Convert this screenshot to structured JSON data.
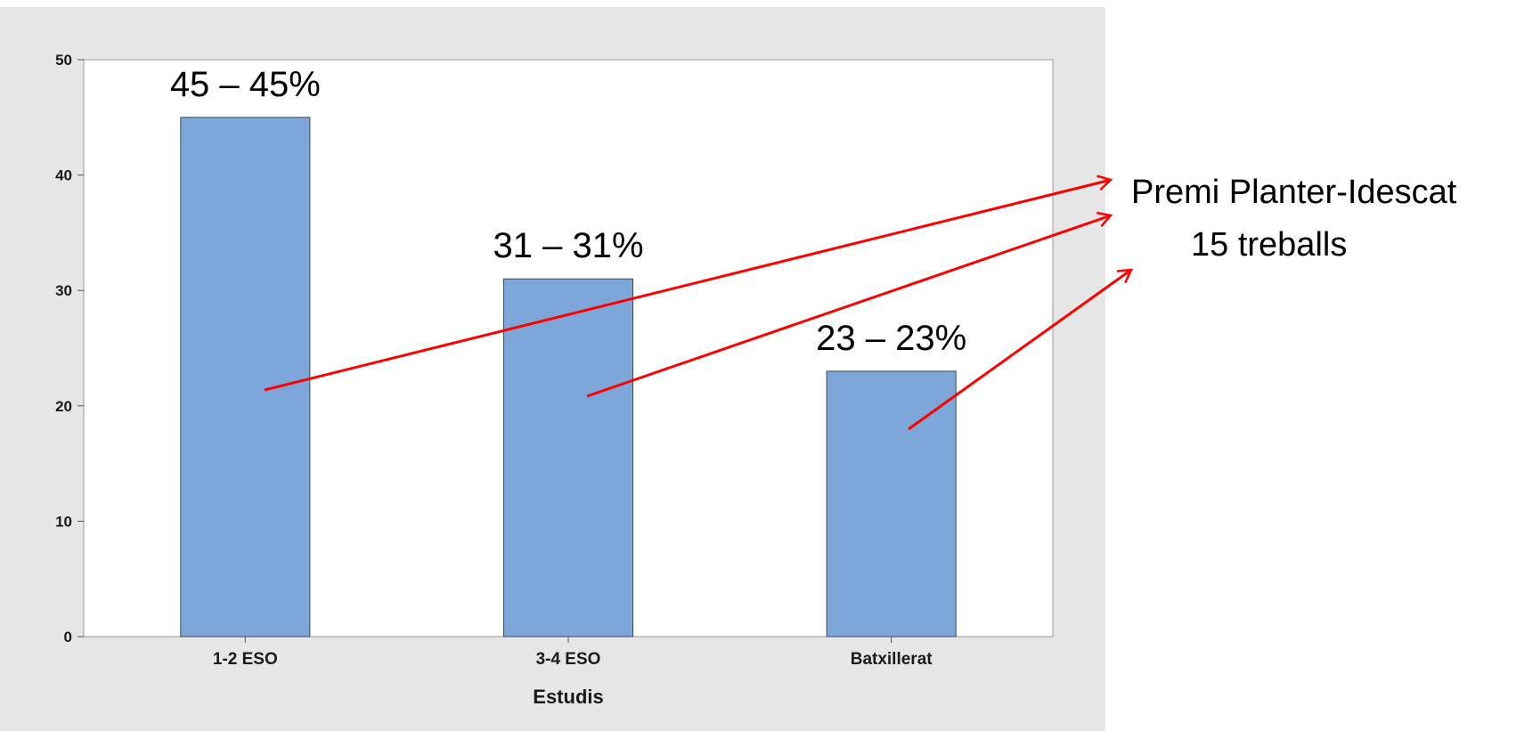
{
  "chart_data": {
    "type": "bar",
    "categories": [
      "1-2 ESO",
      "3-4 ESO",
      "Batxillerat"
    ],
    "values": [
      45,
      31,
      23
    ],
    "data_labels": [
      "45 – 45%",
      "31 – 31%",
      "23 – 23%"
    ],
    "xlabel": "Estudis",
    "ylabel": "",
    "ylim": [
      0,
      50
    ],
    "yticks": [
      0,
      10,
      20,
      30,
      40,
      50
    ],
    "ytick_labels": [
      "0",
      "10",
      "20",
      "30",
      "40",
      "50"
    ],
    "grid": false,
    "bar_color": "#7DA7D9",
    "plot_background": "#FFFFFF",
    "figure_background": "#E6E6E6"
  },
  "annotation": {
    "line1": "Premi Planter-Idescat",
    "line2": "15 treballs",
    "arrow_color": "#FF0000"
  }
}
